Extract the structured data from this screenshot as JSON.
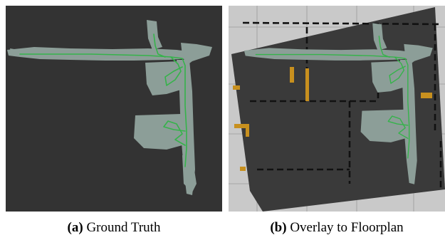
{
  "figure": {
    "panel_a": {
      "tag": "(a)",
      "caption": "Ground Truth"
    },
    "panel_b": {
      "tag": "(b)",
      "caption": "Overlay to Floorplan"
    }
  },
  "colors": {
    "map_background": "#333333",
    "explored_area": "#8c9e98",
    "trajectory": "#35b34a",
    "floorplan_background": "#c9c9c9",
    "floorplan_walls": "#111111",
    "floorplan_furniture": "#c8901e"
  }
}
